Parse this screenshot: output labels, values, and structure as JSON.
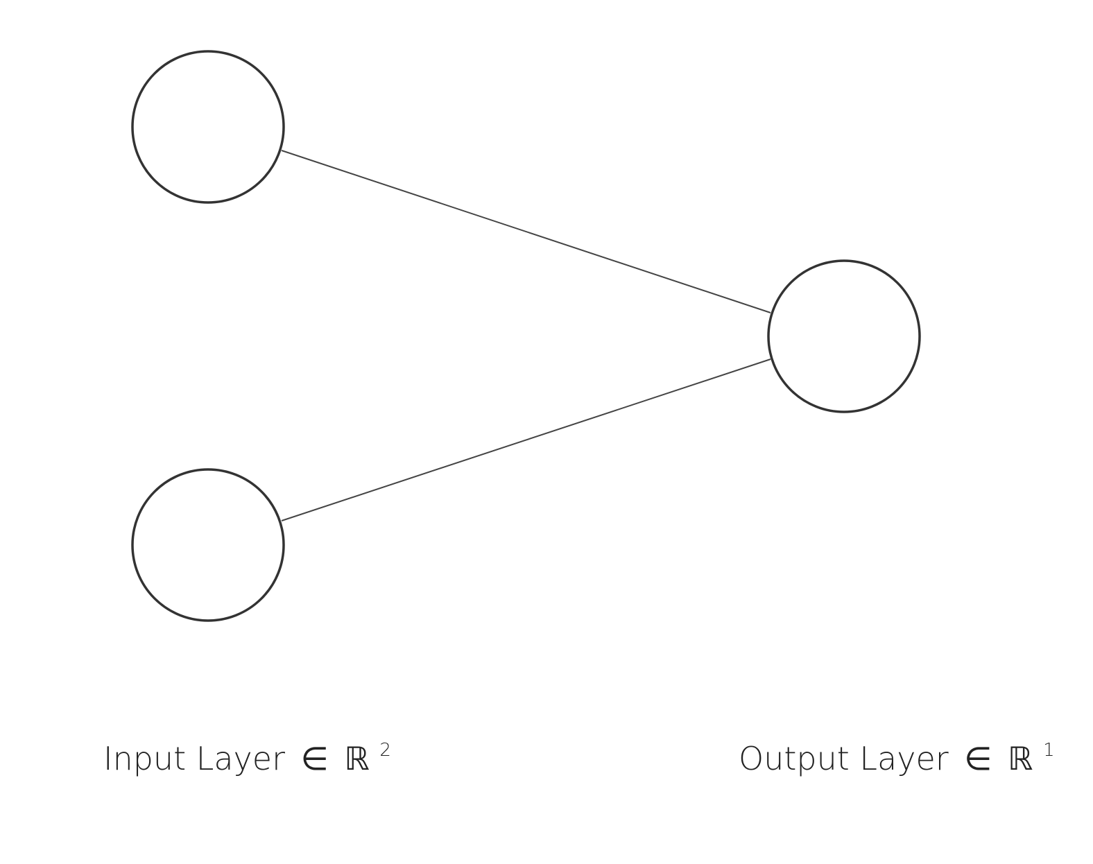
{
  "diagram": {
    "layers": [
      {
        "id": "input",
        "label": "Input Layer",
        "relation": "∈",
        "space": "ℝ",
        "dimension": "2",
        "neuron_count": 2
      },
      {
        "id": "output",
        "label": "Output Layer",
        "relation": "∈",
        "space": "ℝ",
        "dimension": "1",
        "neuron_count": 1
      }
    ],
    "connections": [
      {
        "from": "input-0",
        "to": "output-0"
      },
      {
        "from": "input-1",
        "to": "output-0"
      }
    ]
  }
}
